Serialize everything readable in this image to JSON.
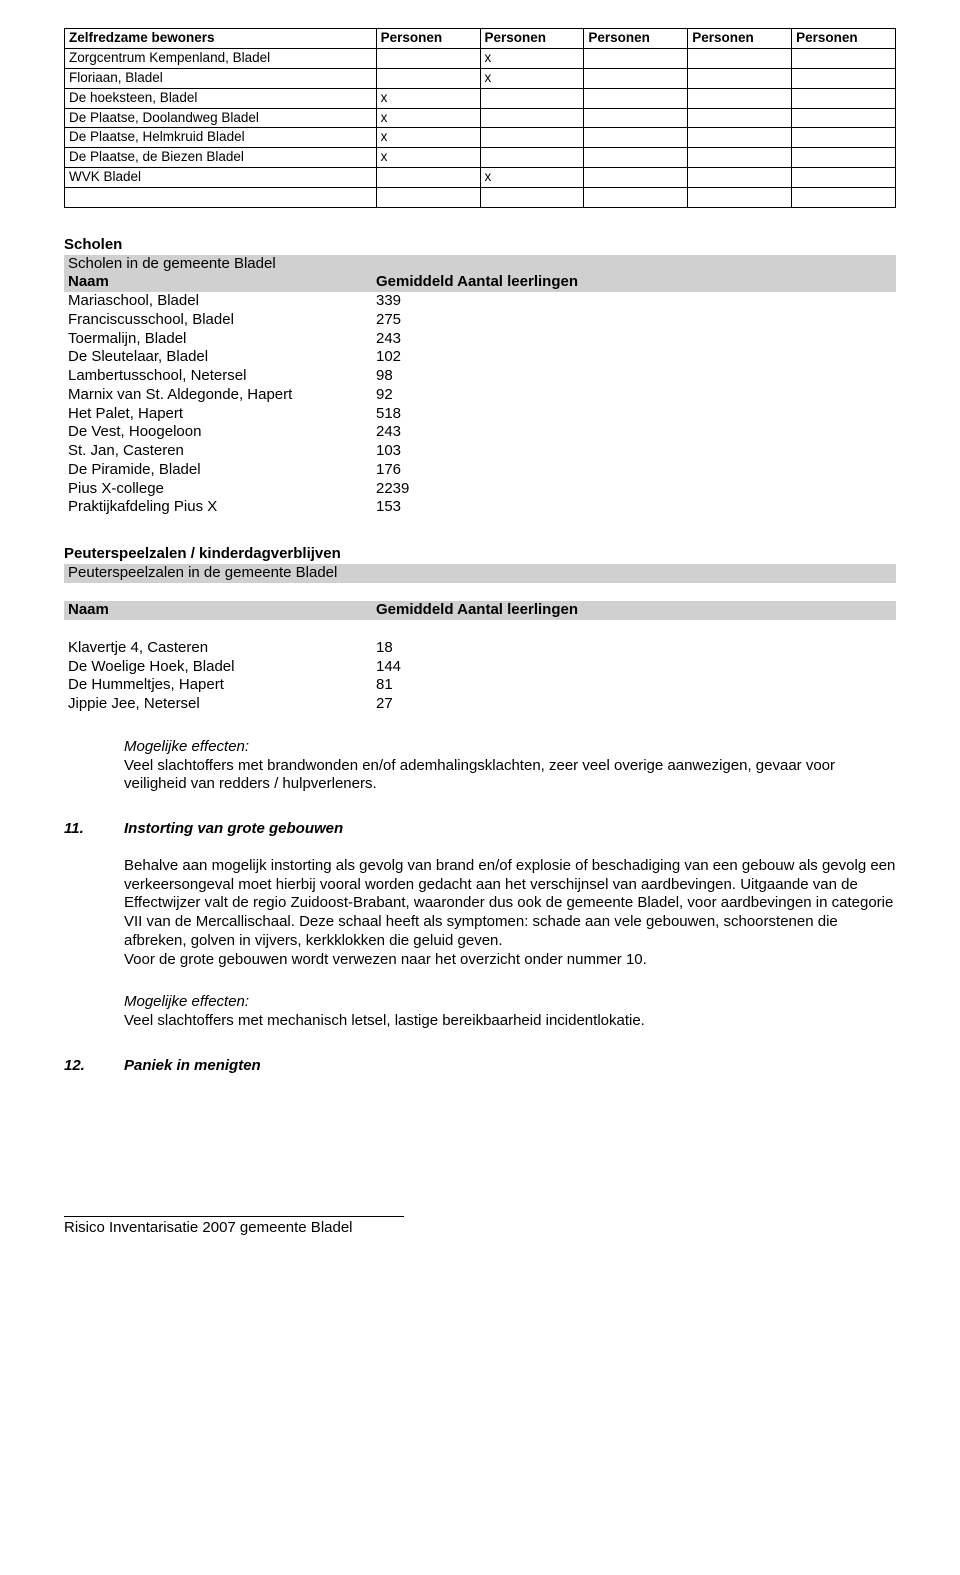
{
  "topTable": {
    "headers": [
      "Zelfredzame bewoners",
      "Personen",
      "Personen",
      "Personen",
      "Personen",
      "Personen"
    ],
    "col_widths_pct": [
      37.5,
      12.5,
      12.5,
      12.5,
      12.5,
      12.5
    ],
    "rows": [
      {
        "label": "Zorgcentrum Kempenland, Bladel",
        "marks": [
          "",
          "x",
          "",
          "",
          ""
        ]
      },
      {
        "label": "Floriaan, Bladel",
        "marks": [
          "",
          "x",
          "",
          "",
          ""
        ]
      },
      {
        "label": "De hoeksteen, Bladel",
        "marks": [
          "x",
          "",
          "",
          "",
          ""
        ]
      },
      {
        "label": "De Plaatse, Doolandweg Bladel",
        "marks": [
          "x",
          "",
          "",
          "",
          ""
        ]
      },
      {
        "label": "De Plaatse, Helmkruid Bladel",
        "marks": [
          "x",
          "",
          "",
          "",
          ""
        ]
      },
      {
        "label": "De Plaatse, de Biezen Bladel",
        "marks": [
          "x",
          "",
          "",
          "",
          ""
        ]
      },
      {
        "label": "WVK Bladel",
        "marks": [
          "",
          "x",
          "",
          "",
          ""
        ]
      }
    ]
  },
  "schools": {
    "heading": "Scholen",
    "caption": "Scholen in de gemeente Bladel",
    "col_headers": [
      "Naam",
      "Gemiddeld Aantal leerlingen"
    ],
    "rows": [
      [
        "Mariaschool, Bladel",
        "339"
      ],
      [
        "Franciscusschool, Bladel",
        "275"
      ],
      [
        "Toermalijn, Bladel",
        "243"
      ],
      [
        "De Sleutelaar, Bladel",
        "102"
      ],
      [
        "Lambertusschool, Netersel",
        "98"
      ],
      [
        "Marnix van St. Aldegonde, Hapert",
        "92"
      ],
      [
        "Het Palet, Hapert",
        "518"
      ],
      [
        "De Vest, Hoogeloon",
        "243"
      ],
      [
        "St. Jan, Casteren",
        "103"
      ],
      [
        "De Piramide, Bladel",
        "176"
      ],
      [
        "Pius X-college",
        "2239"
      ],
      [
        "Praktijkafdeling Pius X",
        "153"
      ]
    ]
  },
  "psz": {
    "heading": "Peuterspeelzalen / kinderdagverblijven",
    "caption": "Peuterspeelzalen in de gemeente Bladel",
    "col_headers": [
      "Naam",
      "Gemiddeld Aantal leerlingen"
    ],
    "rows": [
      [
        "Klavertje 4, Casteren",
        "18"
      ],
      [
        "De Woelige Hoek, Bladel",
        "144"
      ],
      [
        "De Hummeltjes, Hapert",
        "81"
      ],
      [
        "Jippie Jee, Netersel",
        "27"
      ]
    ]
  },
  "effects": {
    "lead": "Mogelijke effecten:",
    "text1": "Veel slachtoffers met brandwonden en/of ademhalingsklachten, zeer veel overige aanwezigen, gevaar voor veiligheid van redders / hulpverleners."
  },
  "item11": {
    "num": "11.",
    "title": "Instorting van grote gebouwen",
    "body": "Behalve aan mogelijk instorting als gevolg van brand en/of explosie of beschadiging van een gebouw als gevolg een verkeersongeval moet hierbij vooral worden gedacht aan het verschijnsel van aardbevingen. Uitgaande van de Effectwijzer valt de regio Zuidoost-Brabant, waaronder dus ook de gemeente Bladel, voor aardbevingen in categorie VII van de Mercallischaal. Deze schaal heeft als symptomen: schade aan vele gebouwen, schoorstenen die afbreken, golven in vijvers, kerkklokken die geluid geven.",
    "body2": "Voor de grote gebouwen wordt verwezen naar het overzicht onder nummer 10.",
    "effects_lead": "Mogelijke effecten:",
    "effects_text": "Veel slachtoffers met mechanisch letsel, lastige bereikbaarheid incidentlokatie."
  },
  "item12": {
    "num": "12.",
    "title": "Paniek in menigten"
  },
  "footer": "Risico Inventarisatie 2007 gemeente Bladel"
}
